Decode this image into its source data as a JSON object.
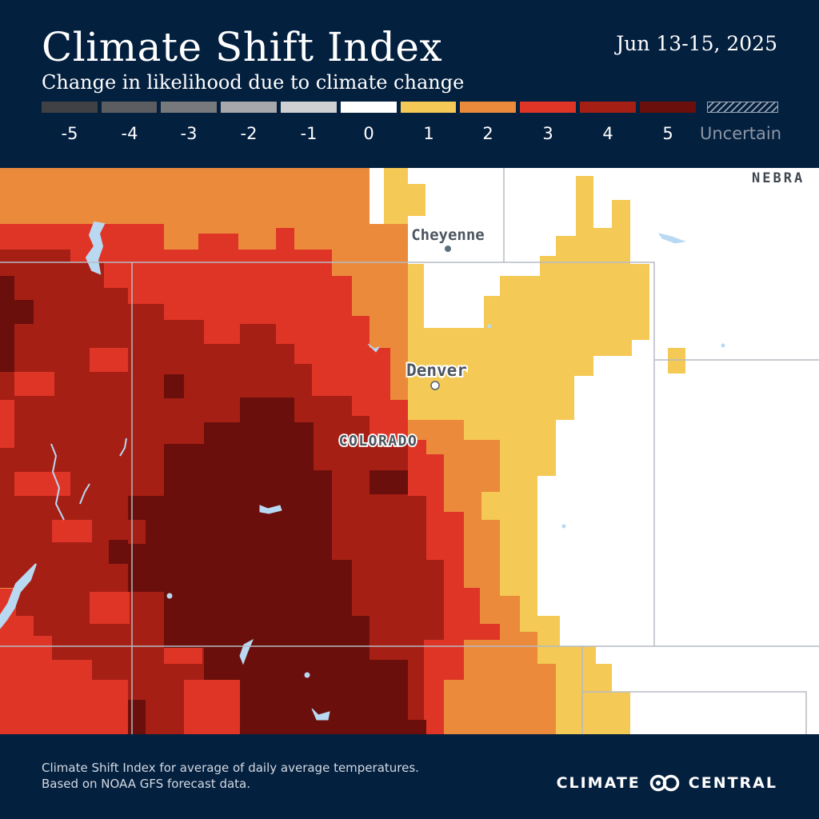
{
  "header": {
    "title": "Climate Shift Index",
    "subtitle": "Change in likelihood due to climate change",
    "date_range": "Jun 13-15, 2025"
  },
  "legend": {
    "items": [
      {
        "label": "-5",
        "color": "#3f4144"
      },
      {
        "label": "-4",
        "color": "#5b5d60"
      },
      {
        "label": "-3",
        "color": "#77797c"
      },
      {
        "label": "-2",
        "color": "#a6a8ab"
      },
      {
        "label": "-1",
        "color": "#cfd0d2"
      },
      {
        "label": "0",
        "color": "#ffffff"
      },
      {
        "label": "1",
        "color": "#f4c955"
      },
      {
        "label": "2",
        "color": "#ec8a3c"
      },
      {
        "label": "3",
        "color": "#df3527"
      },
      {
        "label": "4",
        "color": "#a51f15"
      },
      {
        "label": "5",
        "color": "#6a0f0b"
      }
    ],
    "uncertain_label": "Uncertain"
  },
  "map": {
    "labels": {
      "cheyenne": "Cheyenne",
      "denver": "Denver",
      "state": "COLORADO",
      "nebraska": "NEBRA"
    },
    "water_color": "#b9d9f2",
    "border_color": "#b5bbc3"
  },
  "footer": {
    "note_line1": "Climate Shift Index for average of daily average temperatures.",
    "note_line2": "Based on NOAA GFS forecast data.",
    "brand_left": "CLIMATE",
    "brand_right": "CENTRAL",
    "logo_icon": "two-circles-logo-icon"
  }
}
